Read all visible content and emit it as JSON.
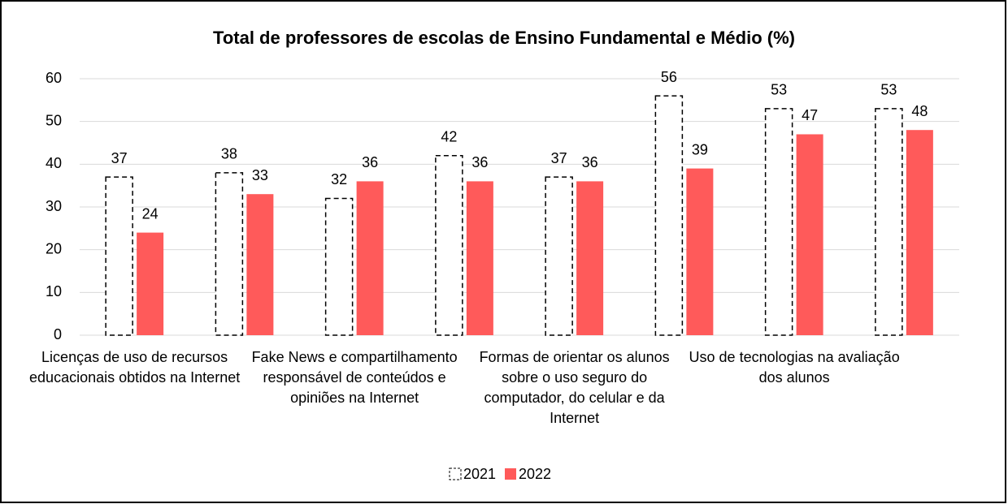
{
  "chart_data": {
    "type": "bar",
    "title": "Total de professores de escolas de Ensino Fundamental e Médio (%)",
    "categories": [
      "Licenças de uso de recursos educacionais obtidos na Internet",
      null,
      "Fake News e compartilhamento responsável de conteúdos e opiniões na Internet",
      null,
      "Formas de orientar os alunos sobre o uso seguro do computador, do celular e da Internet",
      null,
      "Uso de tecnologias na avaliação dos alunos",
      null
    ],
    "series": [
      {
        "name": "2021",
        "color": "#ffffff",
        "values": [
          37,
          38,
          32,
          42,
          37,
          56,
          53,
          53
        ]
      },
      {
        "name": "2022",
        "color": "#ff5a5a",
        "values": [
          24,
          33,
          36,
          36,
          36,
          39,
          47,
          48
        ]
      }
    ],
    "ylim": [
      0,
      60
    ],
    "yticks": [
      0,
      10,
      20,
      30,
      40,
      50,
      60
    ],
    "grid": true,
    "legend": "bottom"
  }
}
